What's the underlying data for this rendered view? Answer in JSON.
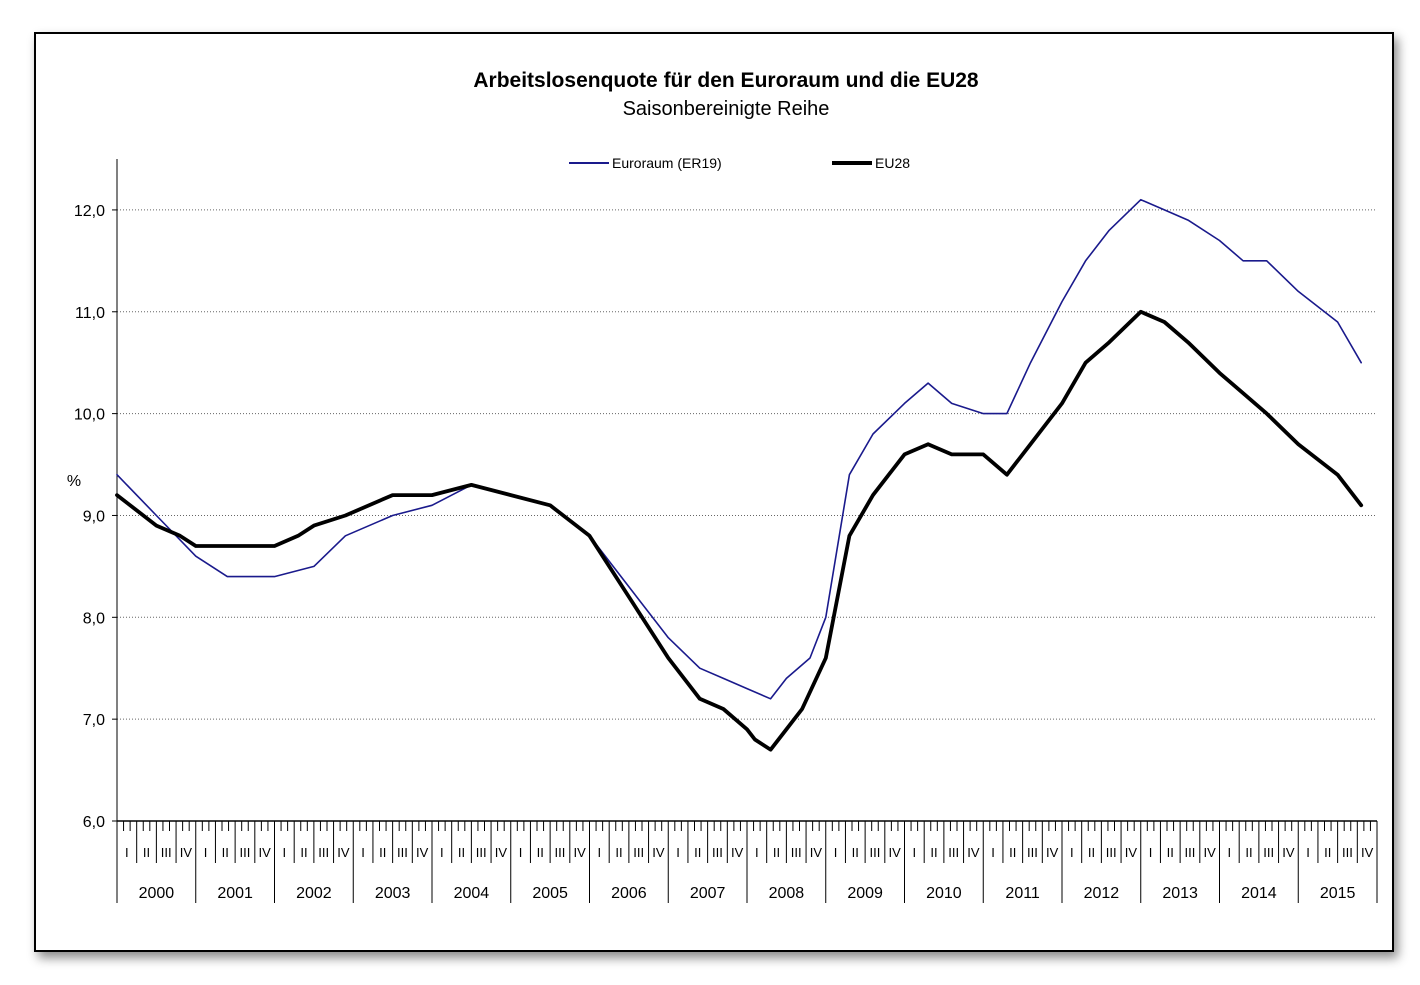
{
  "chart_data": {
    "type": "line",
    "title": "Arbeitslosenquote für den Euroraum und die EU28",
    "subtitle": "Saisonbereinigte Reihe",
    "ylabel": "%",
    "ylim": [
      6.0,
      12.5
    ],
    "yticks": [
      "6,0",
      "7,0",
      "8,0",
      "9,0",
      "10,0",
      "11,0",
      "12,0"
    ],
    "grid": true,
    "legend_position": "top",
    "years": [
      "2000",
      "2001",
      "2002",
      "2003",
      "2004",
      "2005",
      "2006",
      "2007",
      "2008",
      "2009",
      "2010",
      "2011",
      "2012",
      "2013",
      "2014",
      "2015"
    ],
    "quarter_labels": [
      "I",
      "II",
      "III",
      "IV"
    ],
    "colors": {
      "euroraum": "#1a1a8c",
      "eu28": "#000000"
    },
    "series": [
      {
        "name": "Euroraum (ER19)",
        "x": [
          2000.0,
          2000.5,
          2001.0,
          2001.4,
          2001.5,
          2002.0,
          2002.5,
          2002.9,
          2003.5,
          2004.0,
          2004.5,
          2005.0,
          2005.5,
          2006.0,
          2006.5,
          2007.0,
          2007.4,
          2007.7,
          2008.0,
          2008.3,
          2008.5,
          2008.8,
          2009.0,
          2009.3,
          2009.6,
          2010.0,
          2010.3,
          2010.6,
          2011.0,
          2011.3,
          2011.6,
          2012.0,
          2012.3,
          2012.6,
          2013.0,
          2013.3,
          2013.6,
          2014.0,
          2014.3,
          2014.6,
          2015.0,
          2015.5,
          2015.8
        ],
        "y": [
          9.4,
          9.0,
          8.6,
          8.4,
          8.4,
          8.4,
          8.5,
          8.8,
          9.0,
          9.1,
          9.3,
          9.2,
          9.1,
          8.8,
          8.3,
          7.8,
          7.5,
          7.4,
          7.3,
          7.2,
          7.4,
          7.6,
          8.0,
          9.4,
          9.8,
          10.1,
          10.3,
          10.1,
          10.0,
          10.0,
          10.5,
          11.1,
          11.5,
          11.8,
          12.1,
          12.0,
          11.9,
          11.7,
          11.5,
          11.5,
          11.2,
          10.9,
          10.5
        ]
      },
      {
        "name": "EU28",
        "x": [
          2000.0,
          2000.5,
          2000.8,
          2001.0,
          2001.5,
          2002.0,
          2002.3,
          2002.5,
          2002.9,
          2003.5,
          2004.0,
          2004.5,
          2005.0,
          2005.5,
          2006.0,
          2006.5,
          2007.0,
          2007.4,
          2007.7,
          2008.0,
          2008.1,
          2008.3,
          2008.5,
          2008.7,
          2009.0,
          2009.3,
          2009.6,
          2010.0,
          2010.3,
          2010.6,
          2011.0,
          2011.3,
          2011.6,
          2012.0,
          2012.3,
          2012.6,
          2013.0,
          2013.3,
          2013.6,
          2014.0,
          2014.3,
          2014.6,
          2015.0,
          2015.5,
          2015.8
        ],
        "y": [
          9.2,
          8.9,
          8.8,
          8.7,
          8.7,
          8.7,
          8.8,
          8.9,
          9.0,
          9.2,
          9.2,
          9.3,
          9.2,
          9.1,
          8.8,
          8.2,
          7.6,
          7.2,
          7.1,
          6.9,
          6.8,
          6.7,
          6.9,
          7.1,
          7.6,
          8.8,
          9.2,
          9.6,
          9.7,
          9.6,
          9.6,
          9.4,
          9.7,
          10.1,
          10.5,
          10.7,
          11.0,
          10.9,
          10.7,
          10.4,
          10.2,
          10.0,
          9.7,
          9.4,
          9.1
        ]
      }
    ]
  }
}
